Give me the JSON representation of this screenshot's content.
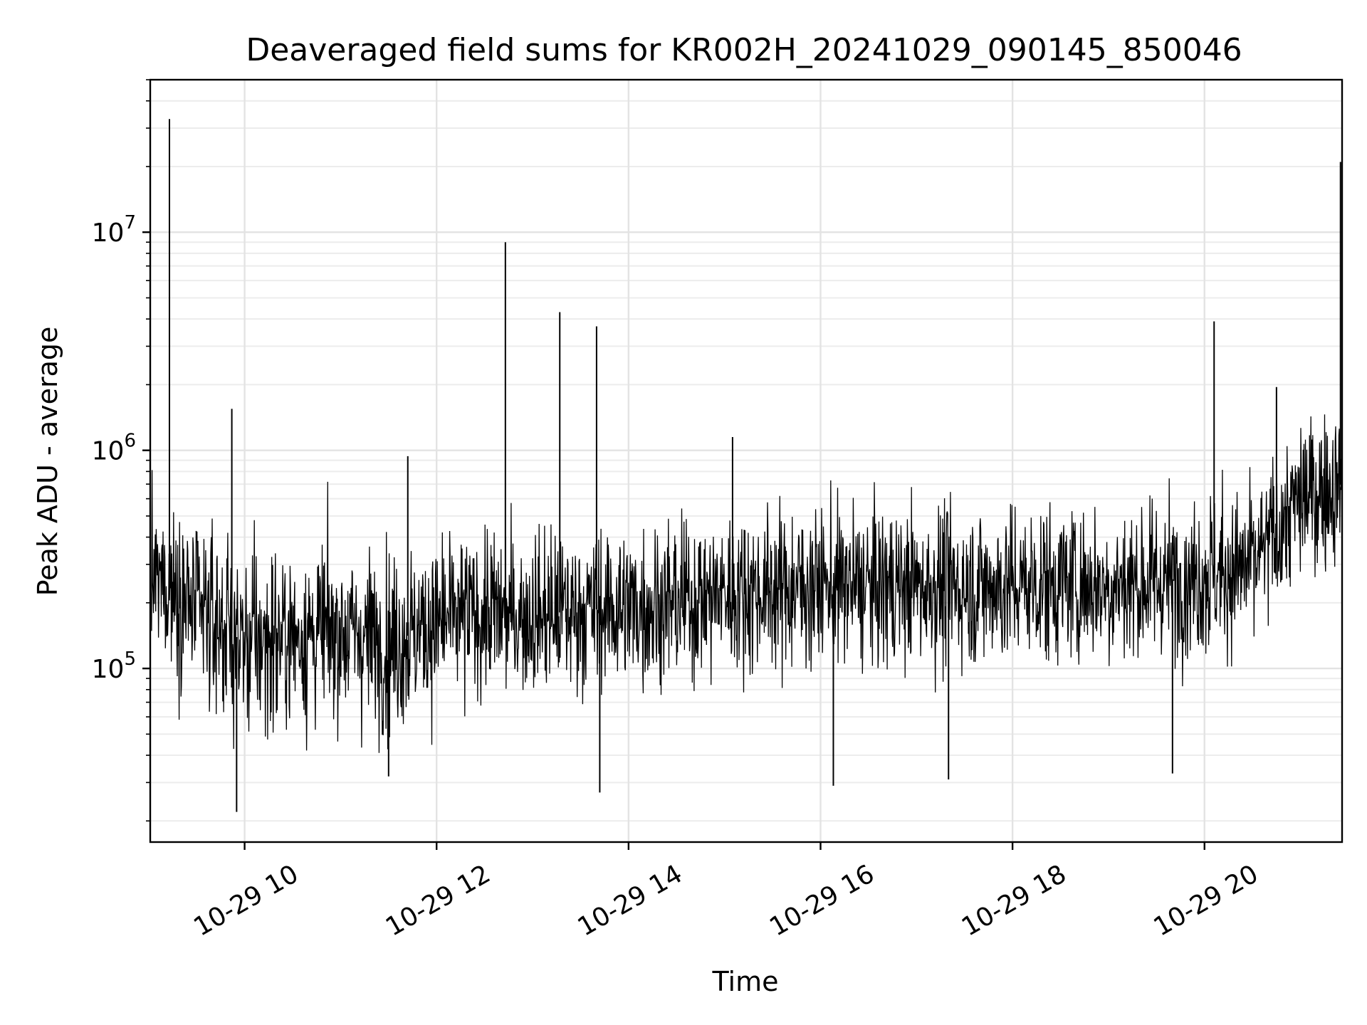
{
  "chart_data": {
    "type": "line",
    "title": "Deaveraged field sums for KR002H_20241029_090145_850046",
    "xlabel": "Time",
    "ylabel": "Peak ADU - average",
    "yscale": "log",
    "ylim": [
      16000,
      50000000
    ],
    "xlim": [
      "2024-10-29 09:01",
      "2024-10-29 21:26"
    ],
    "grid": true,
    "x_ticks": [
      {
        "label": "10-29 10",
        "value": "2024-10-29 10:00"
      },
      {
        "label": "10-29 12",
        "value": "2024-10-29 12:00"
      },
      {
        "label": "10-29 14",
        "value": "2024-10-29 14:00"
      },
      {
        "label": "10-29 16",
        "value": "2024-10-29 16:00"
      },
      {
        "label": "10-29 18",
        "value": "2024-10-29 18:00"
      },
      {
        "label": "10-29 20",
        "value": "2024-10-29 20:00"
      }
    ],
    "y_ticks": [
      {
        "base": "10",
        "exp": "5",
        "value": 100000
      },
      {
        "base": "10",
        "exp": "6",
        "value": 1000000
      },
      {
        "base": "10",
        "exp": "7",
        "value": 10000000
      }
    ],
    "line_color": "#000000",
    "series": [
      {
        "x": [
          "2024-10-29 09:01",
          "2024-10-29 09:15",
          "2024-10-29 09:30",
          "2024-10-29 09:45",
          "2024-10-29 10:00",
          "2024-10-29 10:30",
          "2024-10-29 11:00",
          "2024-10-29 11:30",
          "2024-10-29 12:00",
          "2024-10-29 12:30",
          "2024-10-29 13:00",
          "2024-10-29 13:30",
          "2024-10-29 14:00",
          "2024-10-29 14:30",
          "2024-10-29 15:00",
          "2024-10-29 15:30",
          "2024-10-29 16:00",
          "2024-10-29 16:30",
          "2024-10-29 17:00",
          "2024-10-29 17:30",
          "2024-10-29 18:00",
          "2024-10-29 18:30",
          "2024-10-29 19:00",
          "2024-10-29 19:30",
          "2024-10-29 20:00",
          "2024-10-29 20:30",
          "2024-10-29 21:00",
          "2024-10-29 21:26"
        ],
        "values": [
          250000,
          240000,
          180000,
          160000,
          130000,
          140000,
          150000,
          130000,
          160000,
          180000,
          175000,
          185000,
          190000,
          200000,
          220000,
          230000,
          240000,
          235000,
          240000,
          235000,
          240000,
          245000,
          240000,
          250000,
          270000,
          290000,
          600000,
          700000
        ],
        "band_low": [
          80000,
          70000,
          60000,
          50000,
          40000,
          50000,
          55000,
          45000,
          60000,
          70000,
          70000,
          75000,
          75000,
          80000,
          85000,
          90000,
          90000,
          90000,
          90000,
          90000,
          90000,
          90000,
          90000,
          95000,
          100000,
          120000,
          200000,
          250000
        ],
        "band_high": [
          450000,
          420000,
          380000,
          350000,
          330000,
          340000,
          360000,
          320000,
          380000,
          420000,
          420000,
          430000,
          440000,
          460000,
          480000,
          500000,
          520000,
          510000,
          520000,
          510000,
          520000,
          530000,
          520000,
          540000,
          600000,
          700000,
          1100000,
          1200000
        ]
      }
    ],
    "spikes": [
      {
        "x": "2024-10-29 09:13",
        "y": 33000000
      },
      {
        "x": "2024-10-29 09:52",
        "y": 1550000
      },
      {
        "x": "2024-10-29 11:42",
        "y": 940000
      },
      {
        "x": "2024-10-29 12:43",
        "y": 9000000
      },
      {
        "x": "2024-10-29 13:17",
        "y": 4300000
      },
      {
        "x": "2024-10-29 13:40",
        "y": 3700000
      },
      {
        "x": "2024-10-29 15:05",
        "y": 1150000
      },
      {
        "x": "2024-10-29 20:06",
        "y": 3900000
      },
      {
        "x": "2024-10-29 20:45",
        "y": 1950000
      },
      {
        "x": "2024-10-29 21:25",
        "y": 21000000
      }
    ],
    "dips": [
      {
        "x": "2024-10-29 09:55",
        "y": 22000
      },
      {
        "x": "2024-10-29 13:42",
        "y": 27000
      },
      {
        "x": "2024-10-29 16:08",
        "y": 29000
      },
      {
        "x": "2024-10-29 11:30",
        "y": 32000
      },
      {
        "x": "2024-10-29 17:20",
        "y": 31000
      },
      {
        "x": "2024-10-29 19:40",
        "y": 33000
      }
    ]
  }
}
